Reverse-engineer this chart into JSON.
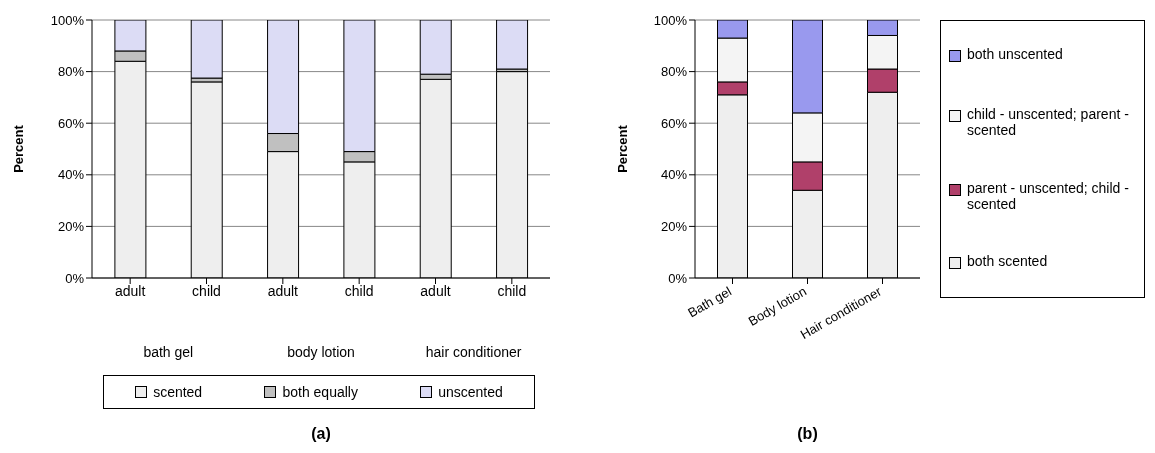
{
  "chart_data": [
    {
      "type": "bar",
      "title": "(a)",
      "ylabel": "Percent",
      "categories": [
        "adult",
        "child",
        "adult",
        "child",
        "adult",
        "child"
      ],
      "annotations": [
        "bath gel",
        "body lotion",
        "hair conditioner"
      ],
      "stacked": true,
      "legend": "bottom",
      "grid": "y",
      "ylim": [
        0,
        100
      ],
      "yticks": [
        {
          "value": 0,
          "label": "0%"
        },
        {
          "value": 20,
          "label": "20%"
        },
        {
          "value": 40,
          "label": "40%"
        },
        {
          "value": 60,
          "label": "60%"
        },
        {
          "value": 80,
          "label": "80%"
        },
        {
          "value": 100,
          "label": "100%"
        }
      ],
      "series": [
        {
          "name": "scented",
          "color": "#eeeeee",
          "values": [
            84,
            76,
            49,
            45,
            77,
            80
          ]
        },
        {
          "name": "both equally",
          "color": "#c0c0c0",
          "values": [
            4,
            1.5,
            7,
            4,
            2,
            1
          ]
        },
        {
          "name": "unscented",
          "color": "#dcdcf5",
          "values": [
            12,
            22.5,
            44,
            51,
            21,
            19
          ]
        }
      ]
    },
    {
      "type": "bar",
      "title": "(b)",
      "ylabel": "Percent",
      "categories": [
        "Bath gel",
        "Body lotion",
        "Hair conditioner"
      ],
      "stacked": true,
      "legend": "right",
      "grid": "y",
      "ylim": [
        0,
        100
      ],
      "yticks": [
        {
          "value": 0,
          "label": "0%"
        },
        {
          "value": 20,
          "label": "20%"
        },
        {
          "value": 40,
          "label": "40%"
        },
        {
          "value": 60,
          "label": "60%"
        },
        {
          "value": 80,
          "label": "80%"
        },
        {
          "value": 100,
          "label": "100%"
        }
      ],
      "series": [
        {
          "name": "both scented",
          "color": "#eeeeee",
          "values": [
            71,
            34,
            72
          ]
        },
        {
          "name": "parent - unscented; child - scented",
          "color": "#b0406a",
          "values": [
            5,
            11,
            9
          ]
        },
        {
          "name": "child - unscented; parent - scented",
          "color": "#f4f4f4",
          "values": [
            17,
            19,
            13
          ]
        },
        {
          "name": "both unscented",
          "color": "#9999ee",
          "values": [
            7,
            36,
            6
          ]
        }
      ]
    }
  ]
}
